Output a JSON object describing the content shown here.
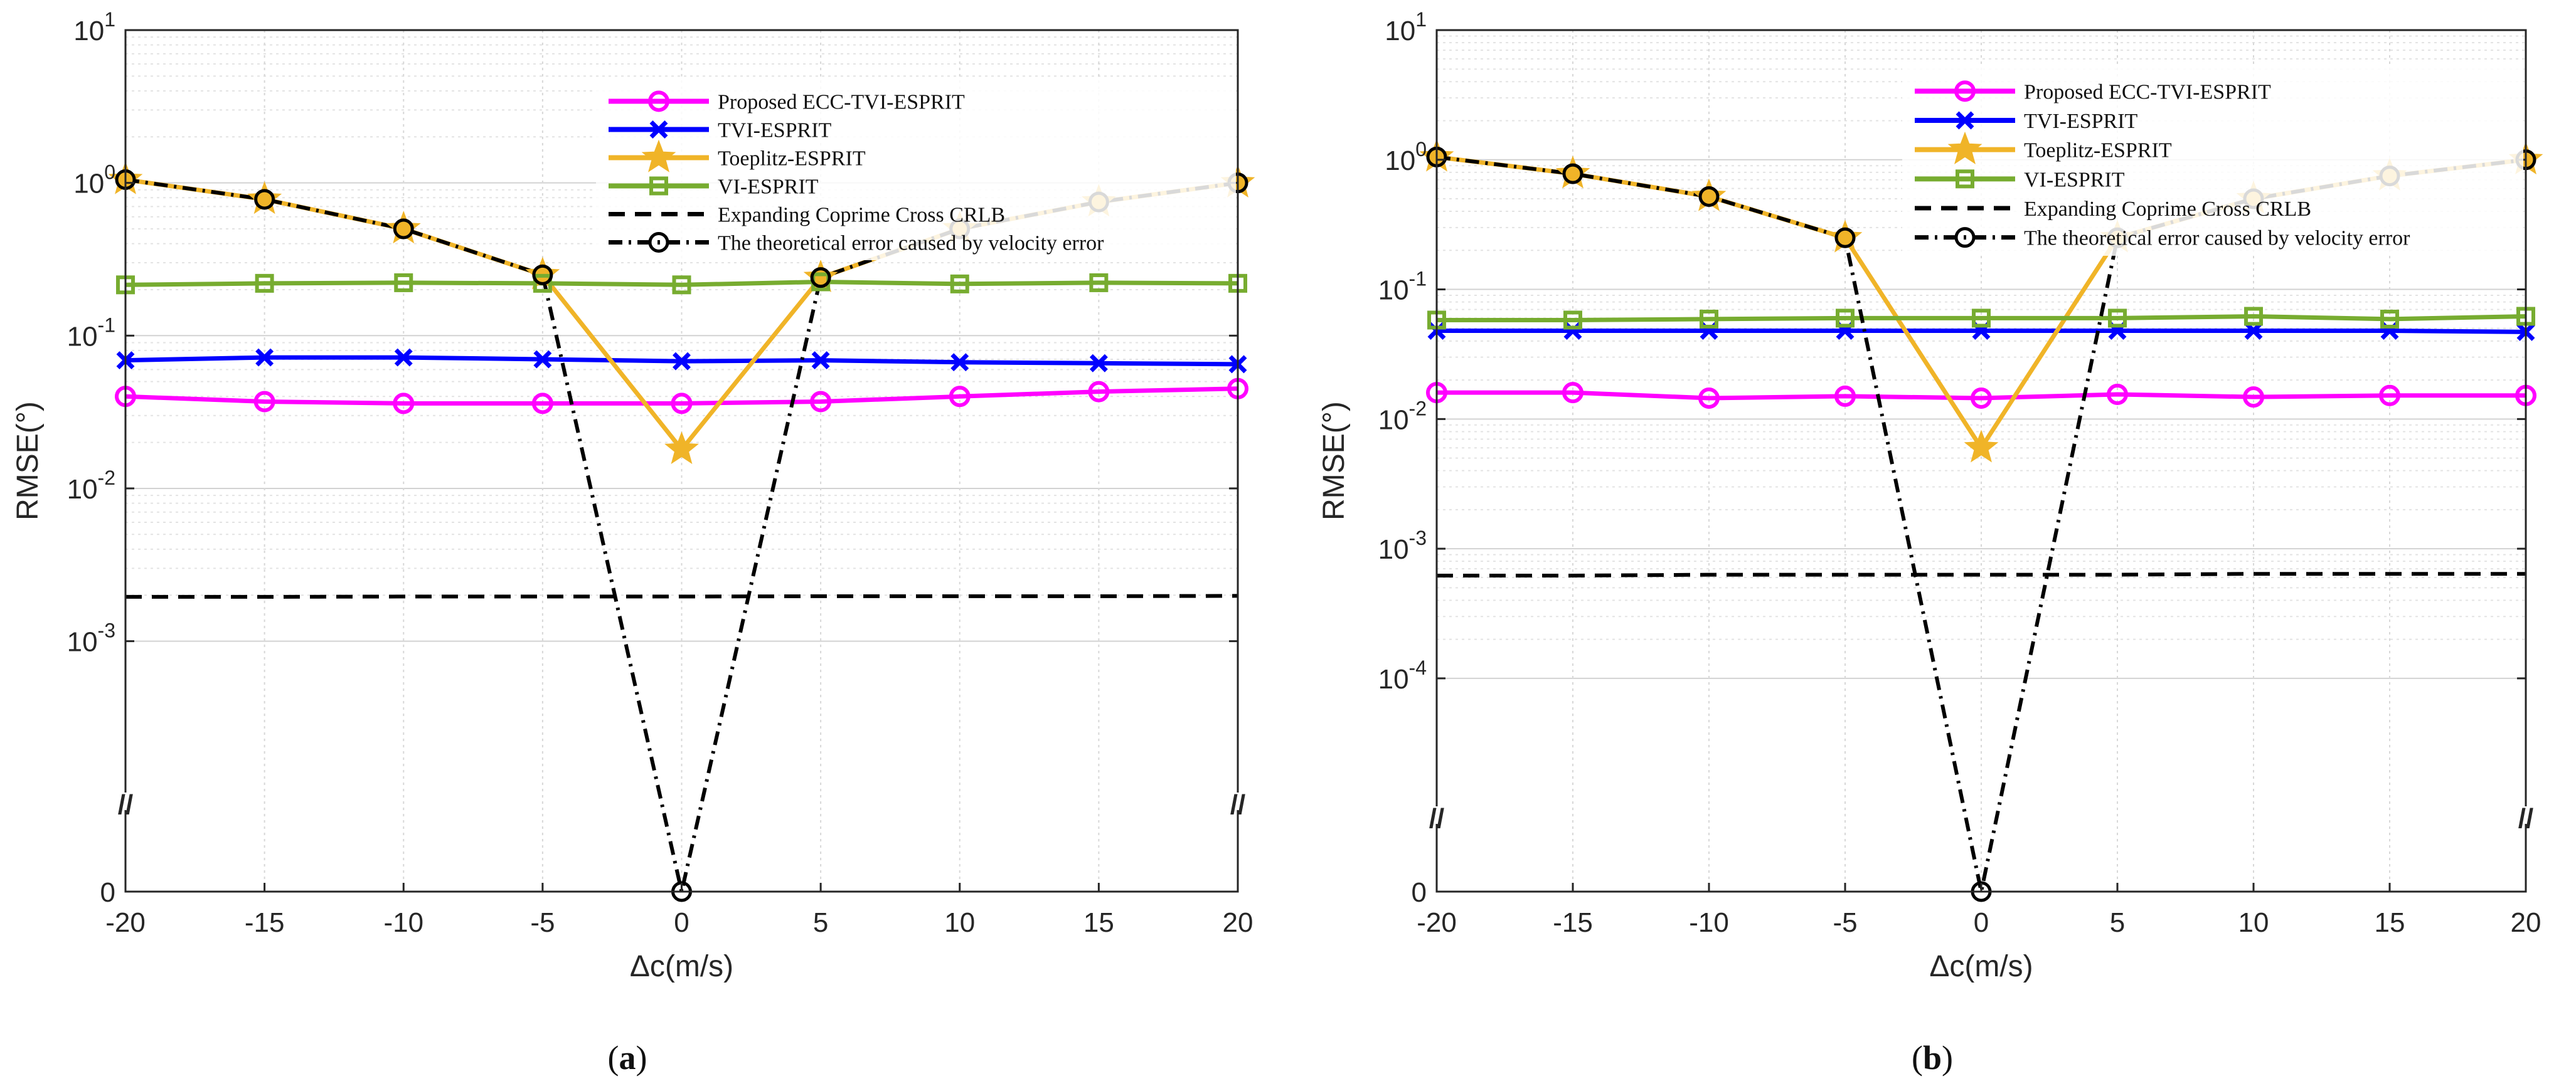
{
  "chart_data": [
    {
      "type": "line",
      "panel_label": "a",
      "xlabel": "Δc(m/s)",
      "ylabel": "RMSE(°)",
      "y_scale": "log-with-broken-axis-to-zero",
      "x": [
        -20,
        -15,
        -10,
        -5,
        0,
        5,
        10,
        15,
        20
      ],
      "x_ticks": [
        "-20",
        "-15",
        "-10",
        "-5",
        "0",
        "5",
        "10",
        "15",
        "20"
      ],
      "xlim": [
        -20,
        20
      ],
      "ylim_log": [
        0.0003,
        10
      ],
      "y_ticks": [
        {
          "value": 0,
          "base": "0",
          "exp": ""
        },
        {
          "value": 0.001,
          "base": "10",
          "exp": "-3"
        },
        {
          "value": 0.01,
          "base": "10",
          "exp": "-2"
        },
        {
          "value": 0.1,
          "base": "10",
          "exp": "-1"
        },
        {
          "value": 1,
          "base": "10",
          "exp": "0"
        },
        {
          "value": 10,
          "base": "10",
          "exp": "1"
        }
      ],
      "break_mark": "//",
      "grid": true,
      "legend_position": "top-right",
      "series": [
        {
          "name": "Proposed ECC-TVI-ESPRIT",
          "color": "#ff00ff",
          "marker": "circle",
          "line": "solid",
          "values": [
            0.04,
            0.037,
            0.036,
            0.036,
            0.036,
            0.037,
            0.04,
            0.043,
            0.045
          ]
        },
        {
          "name": "TVI-ESPRIT",
          "color": "#0000ff",
          "marker": "x",
          "line": "solid",
          "values": [
            0.069,
            0.072,
            0.072,
            0.07,
            0.068,
            0.069,
            0.067,
            0.066,
            0.065
          ]
        },
        {
          "name": "Toeplitz-ESPRIT",
          "color": "#f0b428",
          "marker": "star",
          "line": "solid",
          "values": [
            1.05,
            0.78,
            0.5,
            0.25,
            0.018,
            0.24,
            0.5,
            0.75,
            1.0
          ]
        },
        {
          "name": "VI-ESPRIT",
          "color": "#77ac30",
          "marker": "square",
          "line": "solid",
          "values": [
            0.215,
            0.22,
            0.222,
            0.22,
            0.215,
            0.225,
            0.218,
            0.222,
            0.22
          ]
        },
        {
          "name": "Expanding Coprime Cross CRLB",
          "color": "#000000",
          "marker": "none",
          "line": "dashed",
          "values": [
            0.00195,
            0.00195,
            0.00196,
            0.00196,
            0.00196,
            0.00197,
            0.00197,
            0.00197,
            0.00198
          ]
        },
        {
          "name": "The theoretical error caused by velocity error",
          "color": "#000000",
          "marker": "open-circle",
          "line": "dashdot",
          "values": [
            1.05,
            0.78,
            0.5,
            0.25,
            0,
            0.24,
            0.5,
            0.75,
            1.0
          ]
        }
      ]
    },
    {
      "type": "line",
      "panel_label": "b",
      "xlabel": "Δc(m/s)",
      "ylabel": "RMSE(°)",
      "y_scale": "log-with-broken-axis-to-zero",
      "x": [
        -20,
        -15,
        -10,
        -5,
        0,
        5,
        10,
        15,
        20
      ],
      "x_ticks": [
        "-20",
        "-15",
        "-10",
        "-5",
        "0",
        "5",
        "10",
        "15",
        "20"
      ],
      "xlim": [
        -20,
        20
      ],
      "ylim_log": [
        3e-05,
        10
      ],
      "y_ticks": [
        {
          "value": 0,
          "base": "0",
          "exp": ""
        },
        {
          "value": 0.0001,
          "base": "10",
          "exp": "-4"
        },
        {
          "value": 0.001,
          "base": "10",
          "exp": "-3"
        },
        {
          "value": 0.01,
          "base": "10",
          "exp": "-2"
        },
        {
          "value": 0.1,
          "base": "10",
          "exp": "-1"
        },
        {
          "value": 1,
          "base": "10",
          "exp": "0"
        },
        {
          "value": 10,
          "base": "10",
          "exp": "1"
        }
      ],
      "break_mark": "//",
      "grid": true,
      "legend_position": "top-right",
      "series": [
        {
          "name": "Proposed ECC-TVI-ESPRIT",
          "color": "#ff00ff",
          "marker": "circle",
          "line": "solid",
          "values": [
            0.016,
            0.016,
            0.0145,
            0.015,
            0.0145,
            0.0155,
            0.0148,
            0.0152,
            0.0152
          ]
        },
        {
          "name": "TVI-ESPRIT",
          "color": "#0000ff",
          "marker": "x",
          "line": "solid",
          "values": [
            0.048,
            0.048,
            0.048,
            0.048,
            0.048,
            0.048,
            0.048,
            0.048,
            0.047
          ]
        },
        {
          "name": "Toeplitz-ESPRIT",
          "color": "#f0b428",
          "marker": "star",
          "line": "solid",
          "values": [
            1.05,
            0.78,
            0.52,
            0.25,
            0.006,
            0.25,
            0.5,
            0.75,
            1.0
          ]
        },
        {
          "name": "VI-ESPRIT",
          "color": "#77ac30",
          "marker": "square",
          "line": "solid",
          "values": [
            0.058,
            0.058,
            0.059,
            0.06,
            0.06,
            0.06,
            0.062,
            0.059,
            0.062
          ]
        },
        {
          "name": "Expanding Coprime Cross CRLB",
          "color": "#000000",
          "marker": "none",
          "line": "dashed",
          "values": [
            0.00062,
            0.00062,
            0.00063,
            0.00063,
            0.00063,
            0.00063,
            0.00064,
            0.00064,
            0.00064
          ]
        },
        {
          "name": "The theoretical error caused by velocity error",
          "color": "#000000",
          "marker": "open-circle",
          "line": "dashdot",
          "values": [
            1.05,
            0.78,
            0.52,
            0.25,
            0,
            0.25,
            0.5,
            0.75,
            1.0
          ]
        }
      ]
    }
  ]
}
